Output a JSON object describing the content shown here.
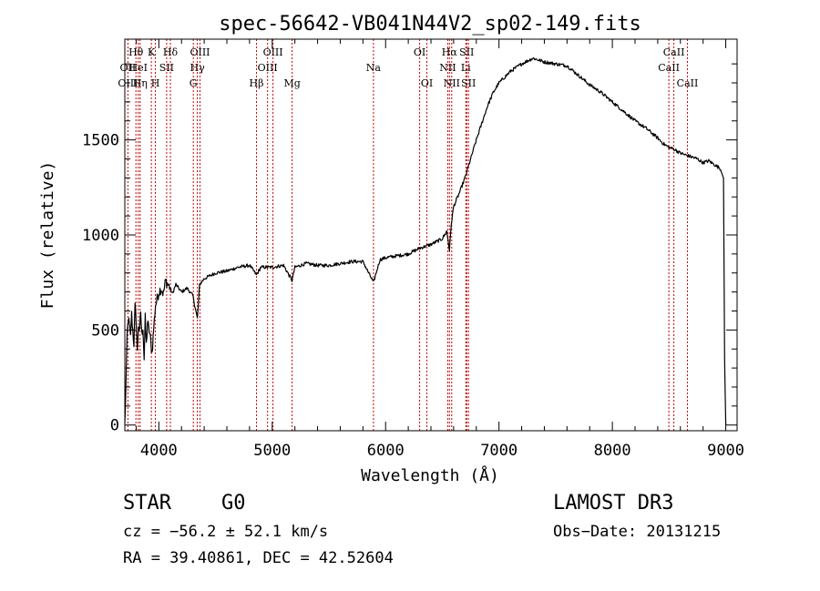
{
  "chart_data": {
    "type": "line",
    "title": "spec-56642-VB041N44V2_sp02-149.fits",
    "xlabel": "Wavelength (Å)",
    "ylabel": "Flux (relative)",
    "xlim": [
      3700,
      9100
    ],
    "ylim": [
      -30,
      2030
    ],
    "xticks": [
      4000,
      5000,
      6000,
      7000,
      8000,
      9000
    ],
    "xtick_labels": [
      "4000",
      "5000",
      "6000",
      "7000",
      "8000",
      "9000"
    ],
    "yticks": [
      0,
      500,
      1000,
      1500
    ],
    "ytick_labels": [
      "0",
      "500",
      "1000",
      "1500"
    ],
    "series": [
      {
        "name": "spectrum",
        "x": [
          3700,
          3710,
          3720,
          3730,
          3740,
          3750,
          3760,
          3770,
          3780,
          3790,
          3800,
          3810,
          3820,
          3830,
          3840,
          3850,
          3860,
          3870,
          3880,
          3890,
          3900,
          3920,
          3940,
          3960,
          3970,
          3980,
          4000,
          4020,
          4040,
          4060,
          4080,
          4100,
          4120,
          4150,
          4200,
          4250,
          4300,
          4340,
          4360,
          4400,
          4500,
          4600,
          4700,
          4800,
          4861,
          4900,
          5000,
          5100,
          5175,
          5200,
          5300,
          5400,
          5500,
          5600,
          5700,
          5800,
          5893,
          5950,
          6000,
          6100,
          6200,
          6300,
          6400,
          6500,
          6540,
          6563,
          6580,
          6600,
          6650,
          6700,
          6750,
          6800,
          6850,
          6900,
          6950,
          7000,
          7100,
          7200,
          7300,
          7350,
          7400,
          7500,
          7600,
          7700,
          7800,
          7900,
          8000,
          8100,
          8200,
          8300,
          8400,
          8450,
          8500,
          8550,
          8600,
          8650,
          8700,
          8750,
          8800,
          8850,
          8900,
          8950,
          8980,
          8990,
          9000
        ],
        "y": [
          0,
          200,
          470,
          560,
          520,
          460,
          580,
          500,
          430,
          620,
          560,
          380,
          530,
          480,
          600,
          470,
          520,
          350,
          560,
          420,
          540,
          480,
          380,
          550,
          630,
          650,
          700,
          720,
          690,
          760,
          740,
          720,
          690,
          740,
          700,
          720,
          680,
          560,
          740,
          770,
          800,
          810,
          830,
          840,
          790,
          830,
          830,
          840,
          760,
          830,
          850,
          840,
          840,
          850,
          860,
          860,
          750,
          870,
          880,
          890,
          900,
          930,
          950,
          980,
          1020,
          920,
          1060,
          1150,
          1220,
          1300,
          1400,
          1500,
          1590,
          1680,
          1750,
          1800,
          1860,
          1900,
          1930,
          1920,
          1910,
          1900,
          1890,
          1840,
          1790,
          1750,
          1700,
          1650,
          1600,
          1560,
          1510,
          1480,
          1460,
          1450,
          1430,
          1420,
          1410,
          1400,
          1380,
          1390,
          1370,
          1350,
          1300,
          350,
          0
        ]
      }
    ],
    "line_markers": [
      {
        "label": "Hθ",
        "x": 3798,
        "row": 0
      },
      {
        "label": "OII",
        "x": 3727,
        "row": 1
      },
      {
        "label": "OIII",
        "x": 3727,
        "row": 2
      },
      {
        "label": "HeI",
        "x": 3819,
        "row": 1
      },
      {
        "label": "Hη",
        "x": 3835,
        "row": 2
      },
      {
        "label": "K",
        "x": 3934,
        "row": 0
      },
      {
        "label": "H",
        "x": 3969,
        "row": 2
      },
      {
        "label": "SII",
        "x": 4069,
        "row": 1
      },
      {
        "label": "Hδ",
        "x": 4102,
        "row": 0
      },
      {
        "label": "OIII",
        "x": 4363,
        "row": 0
      },
      {
        "label": "Hγ",
        "x": 4340,
        "row": 1
      },
      {
        "label": "G",
        "x": 4304,
        "row": 2
      },
      {
        "label": "Hβ",
        "x": 4861,
        "row": 2
      },
      {
        "label": "OIII",
        "x": 4959,
        "row": 1
      },
      {
        "label": "OIII",
        "x": 5007,
        "row": 0
      },
      {
        "label": "Mg",
        "x": 5175,
        "row": 2
      },
      {
        "label": "Na",
        "x": 5893,
        "row": 1
      },
      {
        "label": "OI",
        "x": 6300,
        "row": 0
      },
      {
        "label": "OI",
        "x": 6364,
        "row": 2
      },
      {
        "label": "Hα",
        "x": 6563,
        "row": 0
      },
      {
        "label": "NII",
        "x": 6548,
        "row": 1
      },
      {
        "label": "NII",
        "x": 6583,
        "row": 2
      },
      {
        "label": "SII",
        "x": 6716,
        "row": 0
      },
      {
        "label": "Li",
        "x": 6708,
        "row": 1
      },
      {
        "label": "SII",
        "x": 6731,
        "row": 2
      },
      {
        "label": "CaII",
        "x": 8542,
        "row": 0
      },
      {
        "label": "CaII",
        "x": 8498,
        "row": 1
      },
      {
        "label": "CaII",
        "x": 8662,
        "row": 2
      }
    ],
    "marker_color": "#cc0000",
    "line_color": "#000000"
  },
  "info": {
    "object_type": "STAR",
    "subclass": "G0",
    "survey": "LAMOST DR3",
    "cz": "cz = −56.2 ± 52.1 km/s",
    "obs_date": "Obs−Date: 20131215",
    "coords": "RA =  39.40861, DEC =  42.52604"
  }
}
